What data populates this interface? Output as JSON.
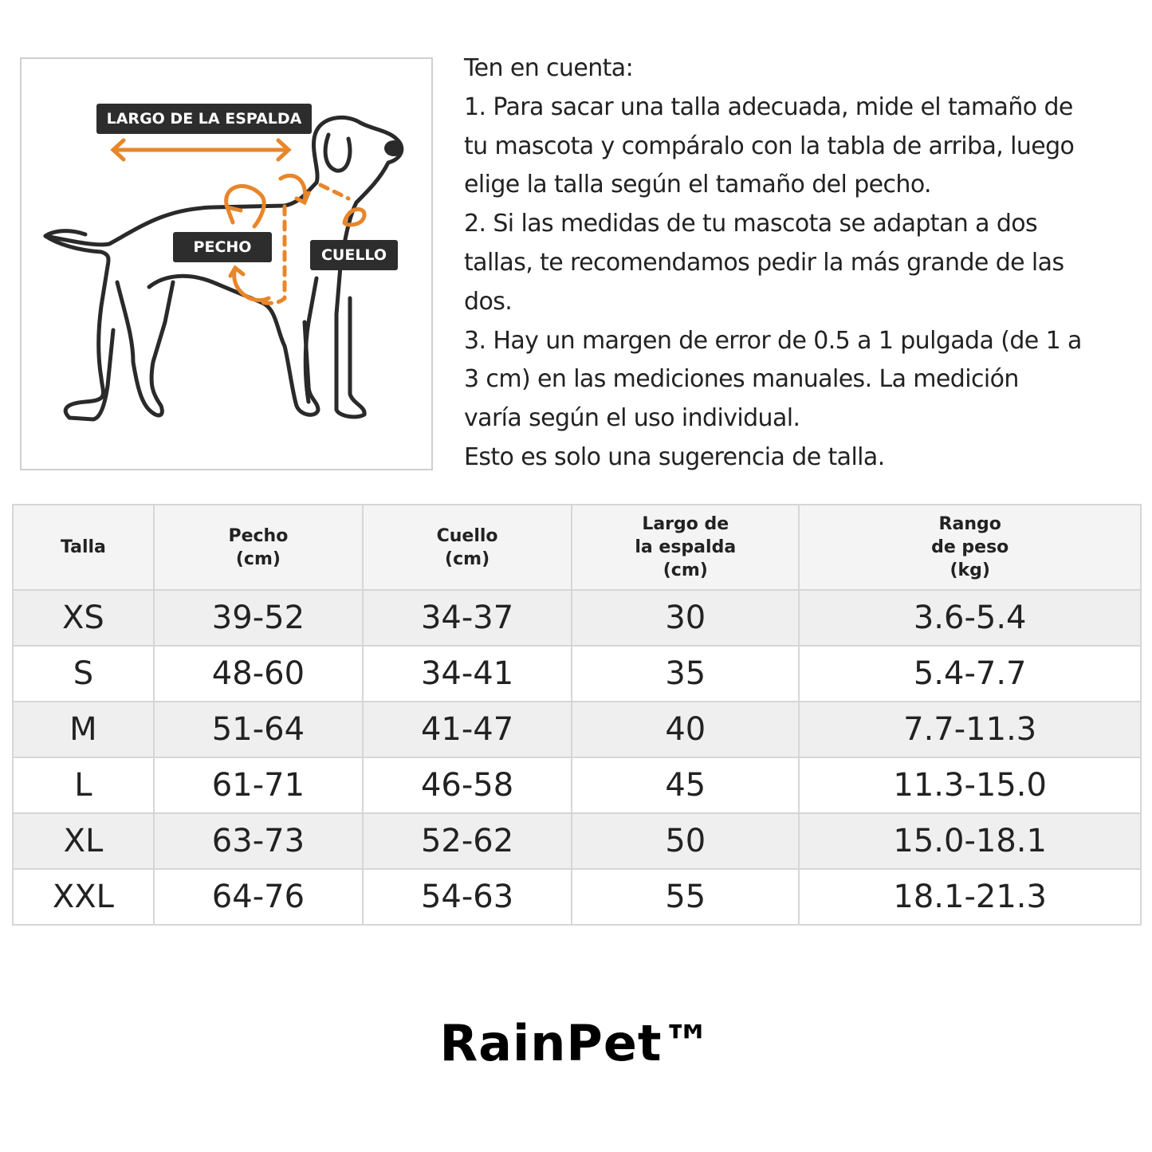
{
  "figure": {
    "labels": {
      "back_length": "LARGO DE LA ESPALDA",
      "chest": "PECHO",
      "neck": "CUELLO"
    },
    "accent_color": "#e8862a"
  },
  "notes": {
    "lines": [
      "Ten en cuenta:",
      " 1. Para sacar una talla adecuada, mide el tamaño de",
      "tu mascota y compáralo con la tabla de arriba, luego",
      "elige la talla según el tamaño del pecho.",
      " 2. Si las medidas de tu mascota se adaptan a dos",
      "tallas, te recomendamos pedir la más grande de las",
      "dos.",
      " 3. Hay un margen de error de 0.5 a 1 pulgada (de 1 a",
      "3 cm) en las mediciones manuales. La medición",
      "varía según el uso individual.",
      " Esto es solo una sugerencia de talla."
    ]
  },
  "table": {
    "headers": [
      [
        "Talla"
      ],
      [
        "Pecho",
        "(cm)"
      ],
      [
        "Cuello",
        "(cm)"
      ],
      [
        "Largo de",
        "la espalda",
        "(cm)"
      ],
      [
        "Rango",
        "de peso",
        "(kg)"
      ]
    ],
    "rows": [
      [
        "XS",
        "39-52",
        "34-37",
        "30",
        "3.6-5.4"
      ],
      [
        "S",
        "48-60",
        "34-41",
        "35",
        "5.4-7.7"
      ],
      [
        "M",
        "51-64",
        "41-47",
        "40",
        "7.7-11.3"
      ],
      [
        "L",
        "61-71",
        "46-58",
        "45",
        "11.3-15.0"
      ],
      [
        "XL",
        "63-73",
        "52-62",
        "50",
        "15.0-18.1"
      ],
      [
        "XXL",
        "64-76",
        "54-63",
        "55",
        "18.1-21.3"
      ]
    ]
  },
  "brand": "RainPet™"
}
